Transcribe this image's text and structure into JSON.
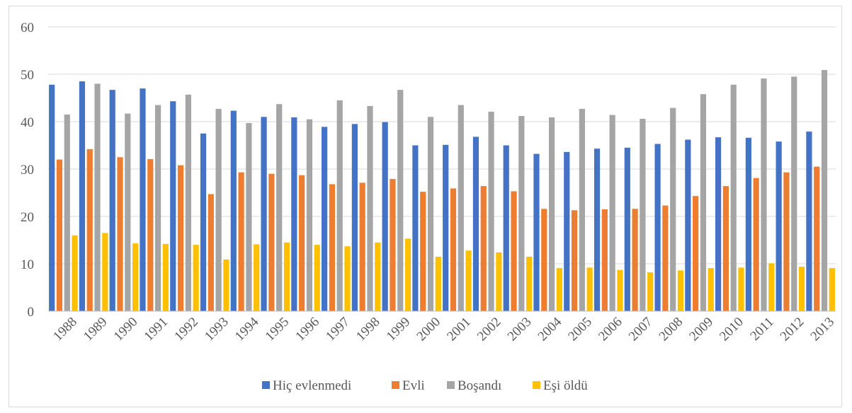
{
  "chart_data": {
    "type": "bar",
    "title": "",
    "xlabel": "",
    "ylabel": "",
    "ylim": [
      0,
      60
    ],
    "yticks": [
      0,
      10,
      20,
      30,
      40,
      50,
      60
    ],
    "grid": "horizontal",
    "legend": "bottom",
    "categories": [
      "1988",
      "1989",
      "1990",
      "1991",
      "1992",
      "1993",
      "1994",
      "1995",
      "1996",
      "1997",
      "1998",
      "1999",
      "2000",
      "2001",
      "2002",
      "2003",
      "2004",
      "2005",
      "2006",
      "2007",
      "2008",
      "2009",
      "2010",
      "2011",
      "2012",
      "2013"
    ],
    "series": [
      {
        "name": "Hiç evlenmedi",
        "color": "#4472c4",
        "values": [
          47.8,
          48.5,
          46.7,
          47.0,
          44.3,
          37.5,
          42.3,
          41.0,
          40.9,
          38.9,
          39.5,
          39.9,
          35.0,
          35.1,
          36.8,
          35.0,
          33.2,
          33.6,
          34.3,
          34.5,
          35.3,
          36.2,
          36.7,
          36.6,
          35.8,
          37.9
        ]
      },
      {
        "name": "Evli",
        "color": "#ed7d31",
        "values": [
          32.0,
          34.2,
          32.5,
          32.1,
          30.8,
          24.7,
          29.3,
          29.0,
          28.7,
          26.8,
          27.1,
          27.9,
          25.2,
          25.9,
          26.4,
          25.3,
          21.6,
          21.3,
          21.5,
          21.6,
          22.3,
          24.3,
          26.4,
          28.1,
          29.3,
          30.5
        ]
      },
      {
        "name": "Boşandı",
        "color": "#a5a5a5",
        "values": [
          41.5,
          48.0,
          41.7,
          43.5,
          45.7,
          42.7,
          39.7,
          43.7,
          40.5,
          44.5,
          43.3,
          46.7,
          41.0,
          43.5,
          42.1,
          41.2,
          40.9,
          42.7,
          41.4,
          40.6,
          42.9,
          45.8,
          47.8,
          49.1,
          49.5,
          50.9
        ]
      },
      {
        "name": "Eşi öldü",
        "color": "#ffc000",
        "values": [
          16.0,
          16.5,
          14.3,
          14.2,
          14.0,
          10.9,
          14.1,
          14.5,
          14.0,
          13.7,
          14.5,
          15.3,
          11.5,
          12.8,
          12.4,
          11.5,
          9.1,
          9.2,
          8.7,
          8.2,
          8.6,
          9.1,
          9.2,
          10.1,
          9.4,
          9.1
        ]
      }
    ]
  }
}
